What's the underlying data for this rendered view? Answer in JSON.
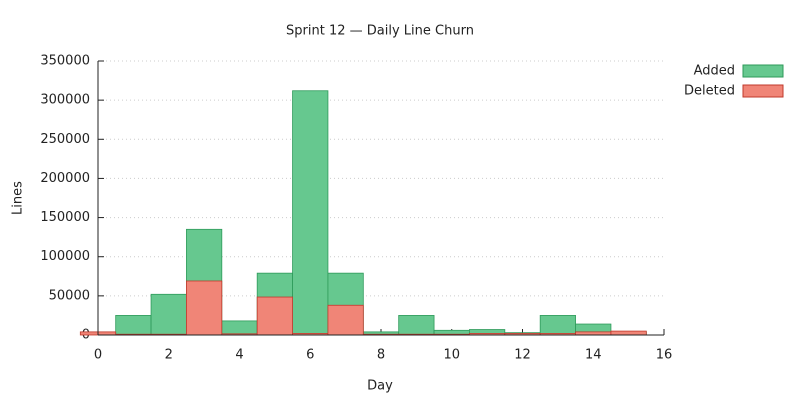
{
  "chart_data": {
    "type": "bar",
    "title": "Sprint 12 — Daily Line Churn",
    "x_label": "Day",
    "y_label": "Lines",
    "x": [
      0,
      1,
      2,
      3,
      4,
      5,
      6,
      7,
      8,
      9,
      10,
      11,
      12,
      13,
      14,
      15
    ],
    "series": [
      {
        "name": "Added",
        "color": "#66c88f",
        "stroke": "#2e9a5a",
        "values": [
          0,
          25000,
          52000,
          135000,
          18000,
          79000,
          312000,
          79000,
          4000,
          25000,
          6000,
          7000,
          3000,
          25000,
          14000,
          4000
        ]
      },
      {
        "name": "Deleted",
        "color": "#f08577",
        "stroke": "#c0392b",
        "values": [
          4000,
          1000,
          1000,
          69000,
          1500,
          48500,
          2000,
          38000,
          1000,
          1000,
          1000,
          2000,
          2000,
          2000,
          4000,
          5000
        ]
      }
    ],
    "xlim": [
      0,
      16
    ],
    "xticks": [
      0,
      2,
      4,
      6,
      8,
      10,
      12,
      14,
      16
    ],
    "ylim": [
      0,
      350000
    ],
    "yticks": [
      0,
      50000,
      100000,
      150000,
      200000,
      250000,
      300000,
      350000
    ],
    "grid": true,
    "legend": "top-right"
  }
}
